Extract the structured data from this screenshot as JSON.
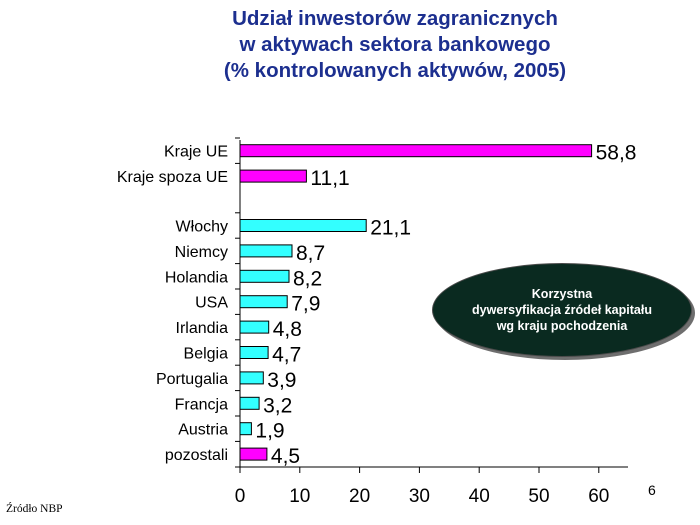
{
  "title_lines": [
    "Udział inwestorów zagranicznych",
    "w aktywach sektora bankowego",
    "(% kontrolowanych aktywów, 2005)"
  ],
  "callout_lines": [
    "Korzystna",
    "dywersyfikacja źródeł kapitału",
    "wg kraju pochodzenia"
  ],
  "source": "Źródło NBP",
  "page_number": "6",
  "colors": {
    "title": "#1c2f8f",
    "magenta": "#ff00ff",
    "cyan": "#33ffff",
    "callout_bg": "#0a2a20"
  },
  "chart_data": {
    "type": "bar",
    "orientation": "horizontal",
    "title": "",
    "xlabel": "",
    "ylabel": "",
    "xlim": [
      0,
      65
    ],
    "xticks": [
      0,
      10,
      20,
      30,
      40,
      50,
      60
    ],
    "categories": [
      "Kraje UE",
      "Kraje spoza UE",
      "Włochy",
      "Niemcy",
      "Holandia",
      "USA",
      "Irlandia",
      "Belgia",
      "Portugalia",
      "Francja",
      "Austria",
      "pozostali"
    ],
    "values": [
      58.8,
      11.1,
      21.1,
      8.7,
      8.2,
      7.9,
      4.8,
      4.7,
      3.9,
      3.2,
      1.9,
      4.5
    ],
    "value_labels": [
      "58,8",
      "11,1",
      "21,1",
      "8,7",
      "8,2",
      "7,9",
      "4,8",
      "4,7",
      "3,9",
      "3,2",
      "1,9",
      "4,5"
    ],
    "bar_colors": [
      "#ff00ff",
      "#ff00ff",
      "#33ffff",
      "#33ffff",
      "#33ffff",
      "#33ffff",
      "#33ffff",
      "#33ffff",
      "#33ffff",
      "#33ffff",
      "#33ffff",
      "#ff00ff"
    ],
    "gap_after_index": 1,
    "grid": false
  }
}
